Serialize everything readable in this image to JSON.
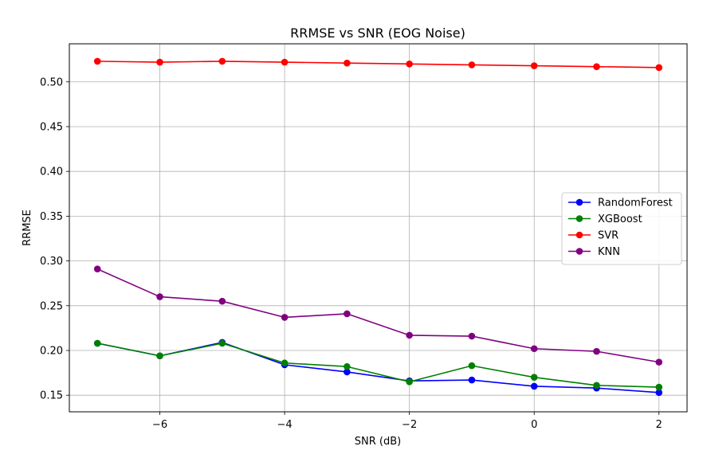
{
  "chart_data": {
    "type": "line",
    "title": "RRMSE vs SNR (EOG Noise)",
    "xlabel": "SNR (dB)",
    "ylabel": "RRMSE",
    "x": [
      -7,
      -6,
      -5,
      -4,
      -3,
      -2,
      -1,
      0,
      1,
      2
    ],
    "xlim": [
      -7.45,
      2.45
    ],
    "ylim": [
      0.1315,
      0.5425
    ],
    "xticks": [
      -6,
      -4,
      -2,
      0,
      2
    ],
    "xtick_labels": [
      "−6",
      "−4",
      "−2",
      "0",
      "2"
    ],
    "yticks": [
      0.15,
      0.2,
      0.25,
      0.3,
      0.35,
      0.4,
      0.45,
      0.5
    ],
    "ytick_labels": [
      "0.15",
      "0.20",
      "0.25",
      "0.30",
      "0.35",
      "0.40",
      "0.45",
      "0.50"
    ],
    "grid": true,
    "legend_position": "center-right",
    "series": [
      {
        "name": "RandomForest",
        "color": "#0000ff",
        "values": [
          0.208,
          0.194,
          0.209,
          0.184,
          0.176,
          0.166,
          0.167,
          0.16,
          0.158,
          0.153
        ]
      },
      {
        "name": "XGBoost",
        "color": "#008000",
        "values": [
          0.208,
          0.194,
          0.208,
          0.186,
          0.182,
          0.165,
          0.183,
          0.17,
          0.161,
          0.159
        ]
      },
      {
        "name": "SVR",
        "color": "#ff0000",
        "values": [
          0.523,
          0.522,
          0.523,
          0.522,
          0.521,
          0.52,
          0.519,
          0.518,
          0.517,
          0.516
        ]
      },
      {
        "name": "KNN",
        "color": "#800080",
        "values": [
          0.291,
          0.26,
          0.255,
          0.237,
          0.241,
          0.217,
          0.216,
          0.202,
          0.199,
          0.187
        ]
      }
    ]
  }
}
